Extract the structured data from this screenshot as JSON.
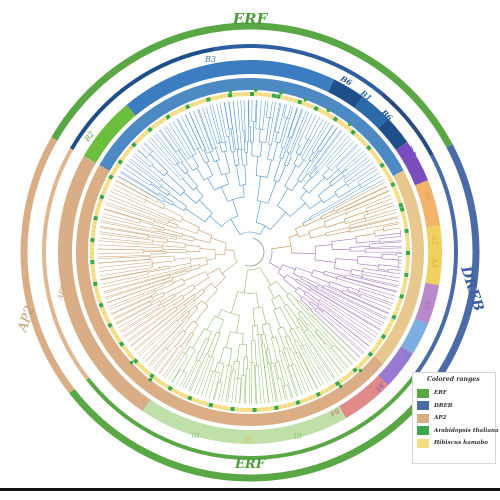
{
  "groups": {
    "erf_top": "ERF",
    "erf_bottom": "ERF",
    "dreb": "DREB",
    "ap2": "AP2"
  },
  "clades": {
    "b3": "B3",
    "b6a": "B6",
    "b1": "B1",
    "b6b": "B6",
    "b5": "B5",
    "b2": "B2",
    "a6": "A6",
    "a2": "A2",
    "a3": "A3",
    "a5": "A5",
    "a1": "A1",
    "a4": "A4",
    "b4": "B4",
    "iii_a": "III",
    "iii_b": "III",
    "iii_c": "III",
    "ap2_inner": "AP2"
  },
  "legend": {
    "title": "Colored ranges",
    "items": [
      {
        "label": "ERF",
        "color": "#5aa845"
      },
      {
        "label": "DREB",
        "color": "#4a6aa8"
      },
      {
        "label": "AP2",
        "color": "#d9ad85"
      },
      {
        "label": "Arabidopsis thaliana",
        "color": "#3aa84a"
      },
      {
        "label": "Hibiscus hamabo",
        "color": "#f4dc80"
      }
    ]
  },
  "colors": {
    "erf": "#5aa845",
    "dreb": "#4a6aa8",
    "ap2": "#d9ad85",
    "b3": "#3b7dc0",
    "b6": "#1f4f8a",
    "b1": "#2b6aa8",
    "b5": "#7a4dbf",
    "b2": "#6cbf3e",
    "a6": "#f1b46a",
    "a2": "#f0d060",
    "a5": "#b98ac9",
    "a1": "#7eaee0",
    "a4": "#9a7ad0",
    "b4": "#e08a8a",
    "iii": "#bfe0a8",
    "arabidopsis": "#3aa84a",
    "hibiscus": "#f4dc80"
  }
}
